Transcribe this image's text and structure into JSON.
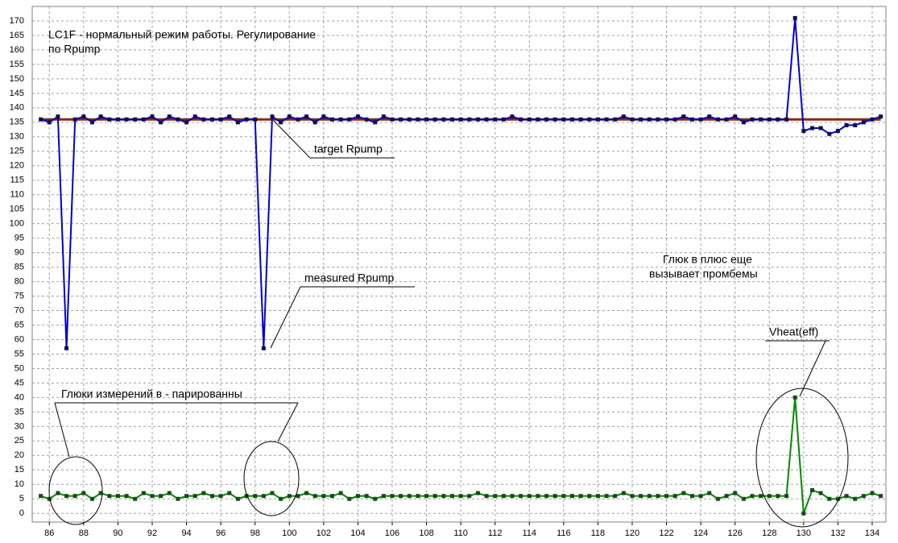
{
  "chart_data": {
    "type": "line",
    "annotations": [
      "LC1F  - нормальный режим работы. Регулирование",
      "по Rpump",
      "Глюк в плюс еще",
      "вызывает промбемы",
      "Глюки измерений в - парированны"
    ],
    "x": [
      85.5,
      86,
      86.5,
      87,
      87.5,
      88,
      88.5,
      89,
      89.5,
      90,
      90.5,
      91,
      91.5,
      92,
      92.5,
      93,
      93.5,
      94,
      94.5,
      95,
      95.5,
      96,
      96.5,
      97,
      97.5,
      98,
      98.5,
      99,
      99.5,
      100,
      100.5,
      101,
      101.5,
      102,
      102.5,
      103,
      103.5,
      104,
      104.5,
      105,
      105.5,
      106,
      106.5,
      107,
      107.5,
      108,
      108.5,
      109,
      109.5,
      110,
      110.5,
      111,
      111.5,
      112,
      112.5,
      113,
      113.5,
      114,
      114.5,
      115,
      115.5,
      116,
      116.5,
      117,
      117.5,
      118,
      118.5,
      119,
      119.5,
      120,
      120.5,
      121,
      121.5,
      122,
      122.5,
      123,
      123.5,
      124,
      124.5,
      125,
      125.5,
      126,
      126.5,
      127,
      127.5,
      128,
      128.5,
      129,
      129.5,
      130,
      130.5,
      131,
      131.5,
      132,
      132.5,
      133,
      133.5,
      134,
      134.5
    ],
    "series": [
      {
        "name": "target Rpump",
        "color": "#8b2a0a",
        "markers": false,
        "values": [
          136,
          136,
          136,
          136,
          136,
          136,
          136,
          136,
          136,
          136,
          136,
          136,
          136,
          136,
          136,
          136,
          136,
          136,
          136,
          136,
          136,
          136,
          136,
          136,
          136,
          136,
          136,
          136,
          136,
          136,
          136,
          136,
          136,
          136,
          136,
          136,
          136,
          136,
          136,
          136,
          136,
          136,
          136,
          136,
          136,
          136,
          136,
          136,
          136,
          136,
          136,
          136,
          136,
          136,
          136,
          136,
          136,
          136,
          136,
          136,
          136,
          136,
          136,
          136,
          136,
          136,
          136,
          136,
          136,
          136,
          136,
          136,
          136,
          136,
          136,
          136,
          136,
          136,
          136,
          136,
          136,
          136,
          136,
          136,
          136,
          136,
          136,
          136,
          136,
          136,
          136,
          136,
          136,
          136,
          136,
          136,
          136,
          136,
          136
        ]
      },
      {
        "name": "measured Rpump",
        "color": "#0000d0",
        "markers": true,
        "marker_color": "#101050",
        "values": [
          136,
          135,
          137,
          57,
          136,
          137,
          135,
          137,
          136,
          136,
          136,
          136,
          136,
          137,
          135,
          137,
          136,
          135,
          137,
          136,
          136,
          136,
          137,
          135,
          136,
          136,
          57,
          137,
          135,
          137,
          136,
          137,
          135,
          137,
          136,
          136,
          136,
          137,
          136,
          135,
          137,
          136,
          136,
          136,
          136,
          136,
          136,
          136,
          136,
          136,
          136,
          136,
          136,
          136,
          136,
          137,
          136,
          136,
          136,
          136,
          136,
          136,
          136,
          136,
          136,
          136,
          136,
          136,
          137,
          136,
          136,
          136,
          136,
          136,
          136,
          137,
          136,
          136,
          137,
          136,
          136,
          137,
          135,
          136,
          136,
          136,
          136,
          136,
          171,
          132,
          133,
          133,
          131,
          132,
          134,
          134,
          135,
          136,
          137
        ]
      },
      {
        "name": "Vheat(eff)",
        "color": "#008a00",
        "markers": true,
        "marker_color": "#1a4a1a",
        "values": [
          6,
          5,
          7,
          6,
          6,
          7,
          5,
          7,
          6,
          6,
          6,
          5,
          7,
          6,
          6,
          7,
          5,
          6,
          6,
          7,
          6,
          6,
          7,
          5,
          6,
          6,
          6,
          7,
          5,
          6,
          6,
          7,
          6,
          6,
          6,
          7,
          5,
          6,
          6,
          5,
          6,
          6,
          6,
          6,
          6,
          6,
          6,
          6,
          6,
          6,
          6,
          7,
          6,
          6,
          6,
          6,
          6,
          6,
          6,
          6,
          6,
          6,
          6,
          6,
          6,
          6,
          6,
          6,
          7,
          6,
          6,
          6,
          6,
          6,
          6,
          7,
          6,
          6,
          7,
          5,
          6,
          7,
          5,
          6,
          6,
          6,
          6,
          6,
          40,
          0,
          8,
          7,
          5,
          5,
          6,
          5,
          6,
          7,
          6
        ]
      }
    ],
    "xlim": [
      85,
      134.8
    ],
    "ylim": [
      -3,
      175
    ],
    "xticks": [
      86,
      88,
      90,
      92,
      94,
      96,
      98,
      100,
      102,
      104,
      106,
      108,
      110,
      112,
      114,
      116,
      118,
      120,
      122,
      124,
      126,
      128,
      130,
      132,
      134
    ],
    "yticks": [
      0,
      5,
      10,
      15,
      20,
      25,
      30,
      35,
      40,
      45,
      50,
      55,
      60,
      65,
      70,
      75,
      80,
      85,
      90,
      95,
      100,
      105,
      110,
      115,
      120,
      125,
      130,
      135,
      140,
      145,
      150,
      155,
      160,
      165,
      170
    ],
    "grid": true
  }
}
